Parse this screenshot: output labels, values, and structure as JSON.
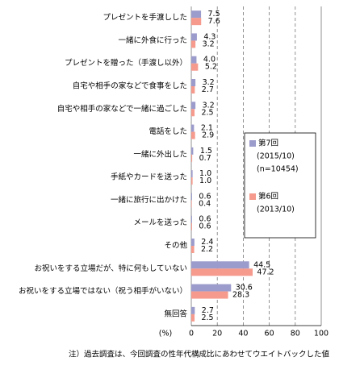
{
  "chart_data": {
    "type": "hbar",
    "categories": [
      "プレゼントを手渡しした",
      "一緒に外食に行った",
      "プレゼントを贈った（手渡し以外）",
      "自宅や相手の家などで食事をした",
      "自宅や相手の家などで一緒に過ごした",
      "電話をした",
      "一緒に外出した",
      "手紙やカードを送った",
      "一緒に旅行に出かけた",
      "メールを送った",
      "その他",
      "お祝いをする立場だが、特に何もしていない",
      "お祝いをする立場ではない（祝う相手がいない）",
      "無回答"
    ],
    "series": [
      {
        "name": "第7回",
        "period": "(2015/10)",
        "sample": "(n=10454)",
        "color": "#9c9ccc",
        "values": [
          7.5,
          4.3,
          4.0,
          3.2,
          3.2,
          2.1,
          1.5,
          1.0,
          0.6,
          0.6,
          2.4,
          44.5,
          30.6,
          2.7
        ],
        "value_labels": [
          "7.5",
          "4.3",
          "4.0",
          "3.2",
          "3.2",
          "2.1",
          "1.5",
          "1.0",
          "0.6",
          "0.6",
          "2.4",
          "44.5",
          "30.6",
          "2.7"
        ]
      },
      {
        "name": "第6回",
        "period": "(2013/10)",
        "color": "#f59a8c",
        "values": [
          7.6,
          3.2,
          5.2,
          2.7,
          2.5,
          2.9,
          0.7,
          1.0,
          0.4,
          0.6,
          2.2,
          47.2,
          28.3,
          2.5
        ],
        "value_labels": [
          "7.6",
          "3.2",
          "5.2",
          "2.7",
          "2.5",
          "2.9",
          "0.7",
          "1.0",
          "0.4",
          "0.6",
          "2.2",
          "47.2",
          "28.3",
          "2.5"
        ]
      }
    ],
    "xlim": [
      0,
      100
    ],
    "xticks": [
      0,
      20,
      40,
      60,
      80,
      100
    ],
    "xlabel": "(%)",
    "grid": true,
    "note": "注）過去調査は、今回調査の性年代構成比にあわせてウエイトバックした値"
  }
}
